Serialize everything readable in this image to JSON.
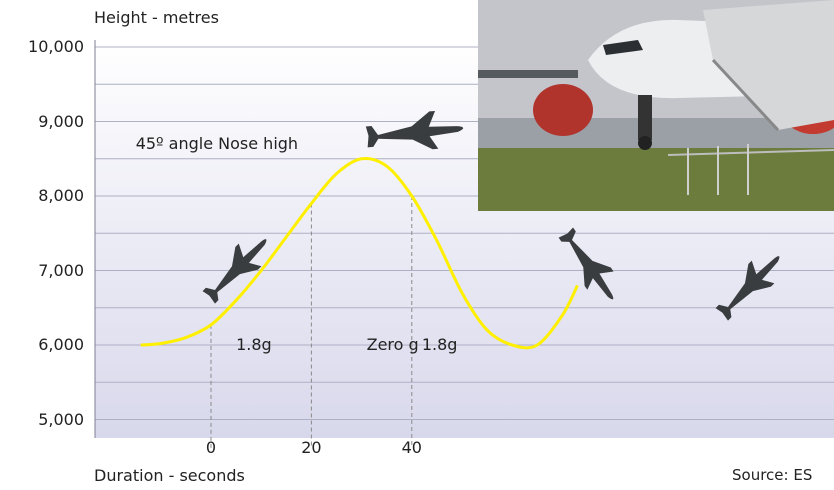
{
  "chart_data": {
    "type": "line",
    "ylabel": "Height - metres",
    "xlabel": "Duration - seconds",
    "source": "Source: ES",
    "ylim": [
      4800,
      10000
    ],
    "y_ticks": [
      5000,
      6000,
      7000,
      8000,
      9000,
      10000
    ],
    "y_tick_labels": [
      "5,000",
      "6,000",
      "7,000",
      "8,000",
      "9,000",
      "10,000"
    ],
    "x_ticks": [
      0,
      20,
      40
    ],
    "series": [
      {
        "x": [
          -14,
          -10,
          -5,
          0,
          5,
          10,
          15,
          20,
          25,
          30,
          35,
          40,
          45,
          50,
          55,
          60,
          65,
          70,
          73
        ],
        "y": [
          6000,
          6020,
          6100,
          6270,
          6600,
          7000,
          7450,
          7900,
          8300,
          8500,
          8400,
          8000,
          7400,
          6700,
          6200,
          6000,
          6000,
          6400,
          6800
        ]
      }
    ],
    "annotations": [
      {
        "text": "45º angle Nose high",
        "x": -15,
        "y": 8700
      },
      {
        "text": "1.8g",
        "x": 5,
        "y": 6000
      },
      {
        "text": "Zero g",
        "x": 31,
        "y": 6000
      },
      {
        "text": "1.8g",
        "x": 42,
        "y": 6000
      }
    ],
    "phase_lines": [
      0,
      20,
      40
    ],
    "grid": true,
    "colors": {
      "line": "#ffef00",
      "grid": "#aeb0c4",
      "band_top": "#ffffff",
      "band_bottom": "#d9d9ec"
    }
  },
  "photo": {
    "icon": "airplane-at-airshow-photo"
  },
  "icons": [
    "airplane-silhouette-icon"
  ]
}
